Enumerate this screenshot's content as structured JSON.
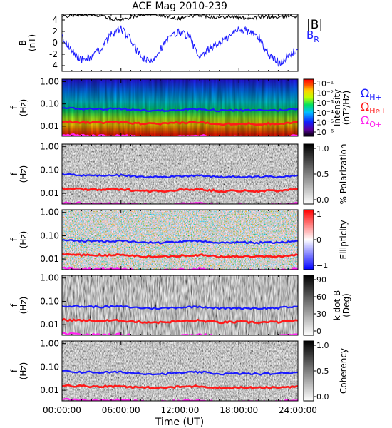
{
  "chart_data": [
    {
      "type": "line",
      "title": "ACE Mag 2010-239",
      "ylabel": [
        "B",
        "(nT)"
      ],
      "ylim": [
        -5,
        5
      ],
      "yticks": [
        4,
        2,
        0,
        -2,
        -4
      ],
      "series": [
        {
          "name": "|B|",
          "color": "#000000",
          "x": [
            0,
            1,
            2,
            3,
            4,
            5,
            6,
            7,
            8,
            9,
            10,
            11,
            12,
            13,
            14,
            15,
            16,
            17,
            18,
            19,
            20,
            21,
            22,
            23,
            24
          ],
          "values": [
            4.6,
            4.8,
            4.9,
            5.0,
            4.8,
            4.2,
            4.0,
            4.5,
            4.9,
            5.2,
            4.8,
            4.5,
            4.3,
            4.7,
            4.9,
            4.6,
            4.5,
            4.7,
            4.4,
            4.3,
            4.5,
            4.6,
            4.4,
            4.8,
            4.6
          ]
        },
        {
          "name": "B",
          "subscript": "R",
          "color": "#1a1aff",
          "x": [
            0,
            1,
            2,
            3,
            4,
            5,
            6,
            7,
            8,
            9,
            10,
            11,
            12,
            13,
            14,
            15,
            16,
            17,
            18,
            19,
            20,
            21,
            22,
            23,
            24
          ],
          "values": [
            1.0,
            -1.5,
            -3.0,
            -2.5,
            -1.0,
            1.5,
            2.5,
            0.5,
            -2.5,
            -3.5,
            -1.0,
            1.0,
            2.0,
            1.0,
            -3.0,
            -1.0,
            0.0,
            1.0,
            2.5,
            2.0,
            1.0,
            -2.0,
            -3.5,
            -2.5,
            -1.0
          ]
        }
      ]
    },
    {
      "type": "heatmap",
      "ylabel": [
        "f",
        "(Hz)"
      ],
      "yticks": [
        "1.00",
        "0.10",
        "0.01"
      ],
      "colorbar": {
        "title": [
          "Intensity",
          "(nT²/Hz)"
        ],
        "ticks": [
          "10⁻¹",
          "10⁻²",
          "10⁻³",
          "10⁻⁴",
          "10⁻⁵",
          "10⁻⁶"
        ],
        "scale": "rainbow"
      }
    },
    {
      "type": "heatmap",
      "ylabel": [
        "f",
        "(Hz)"
      ],
      "yticks": [
        "1.00",
        "0.10",
        "0.01"
      ],
      "colorbar": {
        "title": [
          "% Polarization"
        ],
        "ticks": [
          "1.0",
          "0.5",
          "0.0"
        ],
        "scale": "gray"
      }
    },
    {
      "type": "heatmap",
      "ylabel": [
        "f",
        "(Hz)"
      ],
      "yticks": [
        "1.00",
        "0.10",
        "0.01"
      ],
      "colorbar": {
        "title": [
          "Ellipticity"
        ],
        "ticks": [
          "1",
          "0",
          "−1"
        ],
        "scale": "bwr"
      }
    },
    {
      "type": "heatmap",
      "ylabel": [
        "f",
        "(Hz)"
      ],
      "yticks": [
        "1.00",
        "0.10",
        "0.01"
      ],
      "colorbar": {
        "title": [
          "k dot B",
          "(Deg)"
        ],
        "ticks": [
          "90",
          "60",
          "30",
          "0"
        ],
        "scale": "gray"
      }
    },
    {
      "type": "heatmap",
      "ylabel": [
        "f",
        "(Hz)"
      ],
      "yticks": [
        "1.00",
        "0.10",
        "0.01"
      ],
      "colorbar": {
        "title": [
          "Coherency"
        ],
        "ticks": [
          "1.0",
          "0.5",
          "0.0"
        ],
        "scale": "gray"
      }
    }
  ],
  "gyrofrequency_legend": [
    {
      "label": "Ω",
      "sub": "H+",
      "color": "#1a1aff"
    },
    {
      "label": "Ω",
      "sub": "He+",
      "color": "#ff1a1a"
    },
    {
      "label": "Ω",
      "sub": "O+",
      "color": "#ff22ee"
    }
  ],
  "gyrofrequency_lines": {
    "hours": [
      0,
      2,
      4,
      6,
      8,
      10,
      12,
      14,
      16,
      18,
      20,
      22,
      24
    ],
    "H": [
      0.065,
      0.06,
      0.058,
      0.06,
      0.052,
      0.05,
      0.055,
      0.06,
      0.05,
      0.052,
      0.05,
      0.052,
      0.06
    ],
    "He": [
      0.016,
      0.015,
      0.0145,
      0.015,
      0.013,
      0.0125,
      0.014,
      0.015,
      0.0125,
      0.013,
      0.0125,
      0.013,
      0.015
    ],
    "O": [
      0.0041,
      0.0038,
      0.0037,
      0.0038,
      0.0033,
      0.0032,
      0.0035,
      0.0038,
      0.0032,
      0.0033,
      0.0032,
      0.0033,
      0.0038
    ]
  },
  "x_axis": {
    "label": "Time (UT)",
    "ticks": [
      "00:00:00",
      "06:00:00",
      "12:00:00",
      "18:00:00",
      "24:00:00"
    ]
  }
}
